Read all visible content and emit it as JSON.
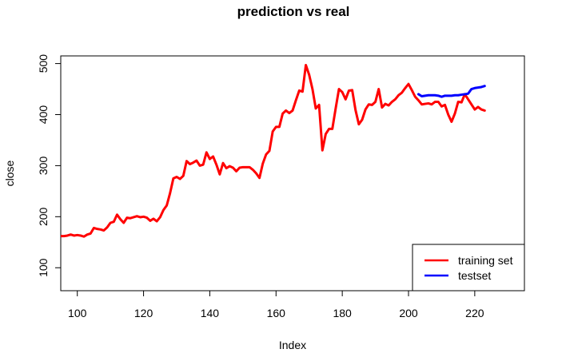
{
  "chart_data": {
    "type": "line",
    "title": "prediction vs real",
    "xlabel": "Index",
    "ylabel": "close",
    "xlim": [
      95,
      235
    ],
    "ylim": [
      55,
      515
    ],
    "x_ticks": [
      100,
      120,
      140,
      160,
      180,
      200,
      220
    ],
    "y_ticks": [
      100,
      200,
      300,
      400,
      500
    ],
    "grid": false,
    "legend_position": "bottom-right",
    "series": [
      {
        "name": "training set",
        "color": "#ff0000",
        "x": [
          95,
          96,
          97,
          98,
          99,
          100,
          101,
          102,
          103,
          104,
          105,
          106,
          107,
          108,
          109,
          110,
          111,
          112,
          113,
          114,
          115,
          116,
          117,
          118,
          119,
          120,
          121,
          122,
          123,
          124,
          125,
          126,
          127,
          128,
          129,
          130,
          131,
          132,
          133,
          134,
          135,
          136,
          137,
          138,
          139,
          140,
          141,
          142,
          143,
          144,
          145,
          146,
          147,
          148,
          149,
          150,
          151,
          152,
          153,
          154,
          155,
          156,
          157,
          158,
          159,
          160,
          161,
          162,
          163,
          164,
          165,
          166,
          167,
          168,
          169,
          170,
          171,
          172,
          173,
          174,
          175,
          176,
          177,
          178,
          179,
          180,
          181,
          182,
          183,
          184,
          185,
          186,
          187,
          188,
          189,
          190,
          191,
          192,
          193,
          194,
          195,
          196,
          197,
          198,
          199,
          200,
          201,
          202,
          203,
          204,
          205,
          206,
          207,
          208,
          209,
          210,
          211,
          212,
          213,
          214,
          215,
          216,
          217,
          218,
          219,
          220,
          221,
          222,
          223
        ],
        "values": [
          162,
          162,
          163,
          165,
          163,
          164,
          163,
          161,
          165,
          167,
          178,
          176,
          175,
          173,
          179,
          188,
          190,
          204,
          195,
          188,
          198,
          197,
          199,
          201,
          199,
          200,
          198,
          192,
          196,
          191,
          199,
          213,
          222,
          246,
          275,
          278,
          274,
          280,
          309,
          303,
          306,
          310,
          300,
          302,
          326,
          313,
          318,
          302,
          283,
          305,
          295,
          299,
          296,
          289,
          296,
          297,
          297,
          297,
          292,
          285,
          276,
          304,
          322,
          329,
          367,
          376,
          376,
          402,
          408,
          403,
          408,
          428,
          447,
          445,
          497,
          478,
          450,
          412,
          419,
          330,
          362,
          372,
          372,
          412,
          450,
          444,
          430,
          447,
          448,
          409,
          381,
          390,
          410,
          420,
          419,
          425,
          450,
          414,
          421,
          418,
          425,
          430,
          438,
          443,
          452,
          460,
          448,
          435,
          428,
          420,
          421,
          422,
          420,
          425,
          425,
          416,
          419,
          400,
          386,
          402,
          425,
          424,
          440,
          430,
          420,
          410,
          415,
          410,
          408
        ]
      },
      {
        "name": "testset",
        "color": "#0000ff",
        "x": [
          203,
          204,
          205,
          206,
          207,
          208,
          209,
          210,
          211,
          212,
          213,
          214,
          215,
          216,
          217,
          218,
          219,
          220,
          221,
          222,
          223
        ],
        "values": [
          440,
          436,
          437,
          438,
          438,
          438,
          437,
          435,
          437,
          437,
          437,
          438,
          438,
          439,
          440,
          441,
          450,
          452,
          453,
          454,
          456
        ]
      }
    ]
  }
}
